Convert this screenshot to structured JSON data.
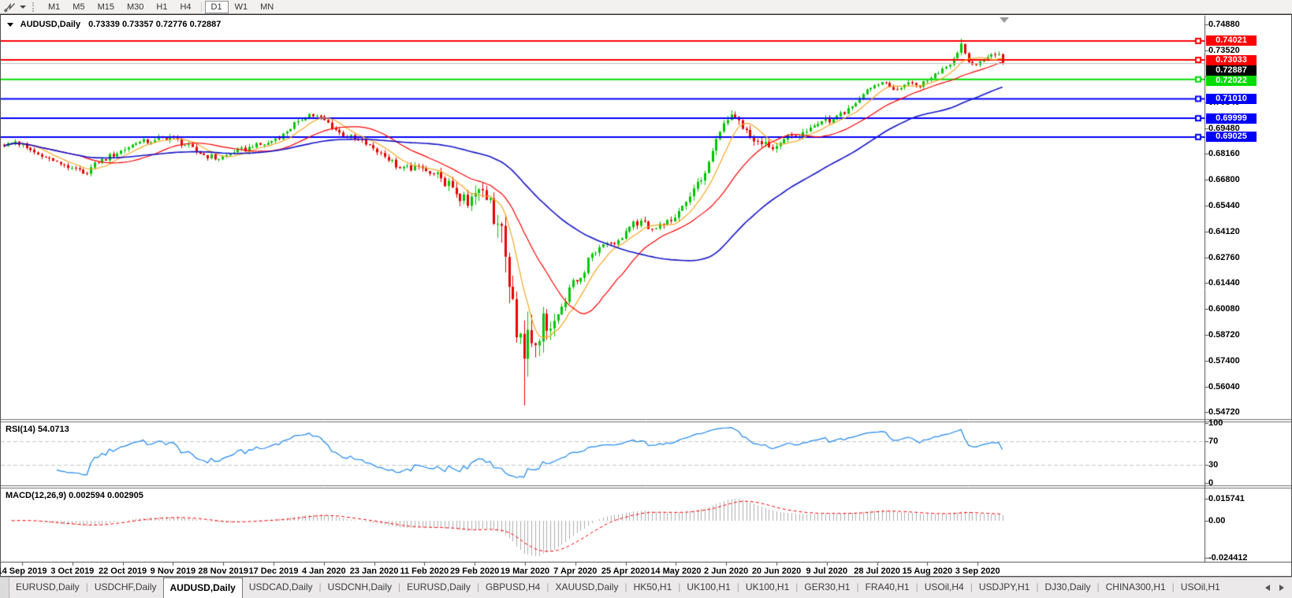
{
  "toolbar": {
    "timeframes": [
      "M1",
      "M5",
      "M15",
      "M30",
      "H1",
      "H4",
      "D1",
      "W1",
      "MN"
    ],
    "active_timeframe": "D1"
  },
  "chart": {
    "title_symbol": "AUDUSD,Daily",
    "ohlc_text": "0.73339 0.73357 0.72776 0.72887"
  },
  "price_axis": {
    "ticks": [
      "0.74880",
      "0.73520",
      "0.72160",
      "0.70840",
      "0.69480",
      "0.68160",
      "0.66800",
      "0.65440",
      "0.64120",
      "0.62760",
      "0.61440",
      "0.60080",
      "0.58720",
      "0.57400",
      "0.56040",
      "0.54720"
    ],
    "current_price": "0.72887"
  },
  "x_axis": {
    "dates": [
      "14 Sep 2019",
      "3 Oct 2019",
      "22 Oct 2019",
      "9 Nov 2019",
      "28 Nov 2019",
      "17 Dec 2019",
      "4 Jan 2020",
      "23 Jan 2020",
      "11 Feb 2020",
      "29 Feb 2020",
      "19 Mar 2020",
      "7 Apr 2020",
      "25 Apr 2020",
      "14 May 2020",
      "2 Jun 2020",
      "20 Jun 2020",
      "9 Jul 2020",
      "28 Jul 2020",
      "15 Aug 2020",
      "3 Sep 2020"
    ]
  },
  "tabs": {
    "items": [
      "EURUSD,Daily",
      "USDCHF,Daily",
      "AUDUSD,Daily",
      "USDCAD,Daily",
      "USDCNH,Daily",
      "EURUSD,Daily",
      "GBPUSD,H4",
      "XAUUSD,Daily",
      "HK50,H1",
      "UK100,H1",
      "UK100,H1",
      "GER30,H1",
      "FRA40,H1",
      "USOil,H4",
      "USDJPY,H1",
      "DJ30,Daily",
      "CHINA300,H1",
      "USOil,H1"
    ],
    "active_index": 2
  },
  "chart_data": {
    "type": "candlestick",
    "symbol": "AUDUSD",
    "timeframe": "Daily",
    "values_approximate": true,
    "main": {
      "price_range": {
        "top": 0.7488,
        "bottom": 0.5472
      },
      "bars_total": 266,
      "last_ohlc": {
        "open": 0.73339,
        "high": 0.73357,
        "low": 0.72776,
        "close": 0.72887
      },
      "close_anchors": [
        [
          0,
          0.6855
        ],
        [
          3,
          0.688
        ],
        [
          6,
          0.6845
        ],
        [
          10,
          0.68
        ],
        [
          14,
          0.6775
        ],
        [
          18,
          0.6742
        ],
        [
          21,
          0.6712
        ],
        [
          25,
          0.677
        ],
        [
          31,
          0.6832
        ],
        [
          35,
          0.687
        ],
        [
          40,
          0.6885
        ],
        [
          44,
          0.6905
        ],
        [
          48,
          0.686
        ],
        [
          52,
          0.6815
        ],
        [
          57,
          0.6788
        ],
        [
          61,
          0.6822
        ],
        [
          66,
          0.685
        ],
        [
          70,
          0.6872
        ],
        [
          74,
          0.692
        ],
        [
          78,
          0.6985
        ],
        [
          81,
          0.7022
        ],
        [
          85,
          0.699
        ],
        [
          89,
          0.6925
        ],
        [
          93,
          0.689
        ],
        [
          97,
          0.686
        ],
        [
          101,
          0.68
        ],
        [
          105,
          0.674
        ],
        [
          110,
          0.6748
        ],
        [
          113,
          0.6712
        ],
        [
          116,
          0.6688
        ],
        [
          119,
          0.664
        ],
        [
          123,
          0.6545
        ],
        [
          126,
          0.663
        ],
        [
          129,
          0.6585
        ],
        [
          131,
          0.645
        ],
        [
          133,
          0.628
        ],
        [
          135,
          0.606
        ],
        [
          137,
          0.588
        ],
        [
          138,
          0.575
        ],
        [
          139,
          0.59
        ],
        [
          141,
          0.582
        ],
        [
          143,
          0.5985
        ],
        [
          145,
          0.5905
        ],
        [
          148,
          0.602
        ],
        [
          150,
          0.612
        ],
        [
          153,
          0.617
        ],
        [
          156,
          0.6295
        ],
        [
          159,
          0.6345
        ],
        [
          163,
          0.6365
        ],
        [
          166,
          0.6435
        ],
        [
          169,
          0.6468
        ],
        [
          172,
          0.6425
        ],
        [
          175,
          0.6445
        ],
        [
          177,
          0.6465
        ],
        [
          180,
          0.6545
        ],
        [
          183,
          0.6635
        ],
        [
          186,
          0.6715
        ],
        [
          188,
          0.683
        ],
        [
          190,
          0.693
        ],
        [
          192,
          0.699
        ],
        [
          194,
          0.7005
        ],
        [
          196,
          0.6945
        ],
        [
          199,
          0.688
        ],
        [
          203,
          0.685
        ],
        [
          206,
          0.6872
        ],
        [
          209,
          0.691
        ],
        [
          212,
          0.6928
        ],
        [
          215,
          0.6962
        ],
        [
          217,
          0.6985
        ],
        [
          220,
          0.6995
        ],
        [
          223,
          0.7022
        ],
        [
          226,
          0.7078
        ],
        [
          228,
          0.7125
        ],
        [
          230,
          0.7158
        ],
        [
          233,
          0.7188
        ],
        [
          236,
          0.7148
        ],
        [
          239,
          0.7175
        ],
        [
          243,
          0.7162
        ],
        [
          246,
          0.721
        ],
        [
          249,
          0.7258
        ],
        [
          252,
          0.731
        ],
        [
          254,
          0.7388
        ],
        [
          256,
          0.7292
        ],
        [
          258,
          0.7278
        ],
        [
          260,
          0.7308
        ],
        [
          262,
          0.7332
        ],
        [
          264,
          0.7334
        ],
        [
          265,
          0.72887
        ]
      ],
      "extremes": {
        "spike_low": {
          "bar": 138,
          "low": 0.5506
        },
        "spike_high": {
          "bar": 254,
          "high": 0.7414
        }
      },
      "moving_averages": [
        {
          "period": 8,
          "color": "#F5A623"
        },
        {
          "period": 21,
          "color": "#FF0000"
        },
        {
          "period": 55,
          "color": "#1414C8"
        }
      ],
      "colors": {
        "up": "#00C400",
        "down": "#E60000"
      },
      "grid": false
    },
    "levels": [
      {
        "price": 0.74021,
        "label": "0.74021",
        "color": "#FF0000"
      },
      {
        "price": 0.73033,
        "label": "0.73033",
        "color": "#FF0000"
      },
      {
        "price": 0.72022,
        "label": "0.72022",
        "color": "#00DC00"
      },
      {
        "price": 0.7101,
        "label": "0.71010",
        "color": "#0000FF"
      },
      {
        "price": 0.69999,
        "label": "0.69999",
        "color": "#0000FF"
      },
      {
        "price": 0.69025,
        "label": "0.69025",
        "color": "#0000FF"
      }
    ],
    "current_price": {
      "value": 0.72887,
      "label": "0.72887",
      "badge_color": "#000000",
      "line_color": "#BDBDBD"
    },
    "rsi": {
      "label": "RSI(14) 54.0713",
      "period": 14,
      "last_value": 54.0713,
      "ticks": [
        100,
        70,
        30,
        0
      ],
      "guides": [
        70,
        30
      ],
      "range": [
        0,
        100
      ],
      "color": "#1C86EE"
    },
    "macd": {
      "label": "MACD(12,26,9) 0.002594 0.002905",
      "params": [
        12,
        26,
        9
      ],
      "last_main": 0.002594,
      "last_signal": 0.002905,
      "ticks": [
        {
          "v": 0.015741,
          "label": "0.015741"
        },
        {
          "v": 0,
          "label": "0.00"
        },
        {
          "v": -0.024412,
          "label": "-0.024412"
        }
      ],
      "range": [
        -0.024412,
        0.015741
      ],
      "histogram_color": "#ADADAD",
      "signal_color": "#FF0000"
    }
  }
}
